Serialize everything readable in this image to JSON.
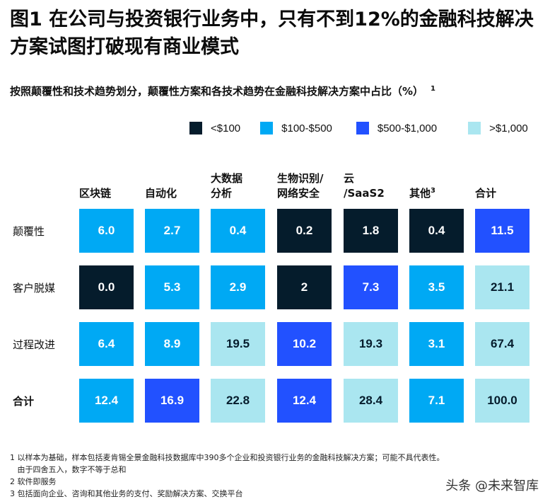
{
  "title": "图1  在公司与投资银行业务中，只有不到12%的金融科技解决方案试图打破现有商业模式",
  "subtitle": "按照颠覆性和技术趋势划分，颠覆性方案和各技术趋势在金融科技解决方案中占比（%）",
  "subtitle_sup": "1",
  "colors": {
    "lt100": "#051c2c",
    "100to500": "#00a9f4",
    "500to1000": "#2251ff",
    "gt1000": "#aae6f0"
  },
  "chart_data": {
    "type": "table",
    "legend": [
      {
        "label": "<$100",
        "color": "#051c2c"
      },
      {
        "label": "$100-$500",
        "color": "#00a9f4"
      },
      {
        "label": "$500-$1,000",
        "color": "#2251ff"
      },
      {
        "label": ">$1,000",
        "color": "#aae6f0"
      }
    ],
    "legend_position": "top-right",
    "columns": [
      {
        "label": "区块链"
      },
      {
        "label": "自动化"
      },
      {
        "label": "大数据\n分析"
      },
      {
        "label": "生物识别/\n网络安全"
      },
      {
        "label": "云\n/SaaS2"
      },
      {
        "label": "其他",
        "sup": "3"
      },
      {
        "label": "合计"
      }
    ],
    "rows": [
      {
        "label": "颠覆性",
        "values": [
          "6.0",
          "2.7",
          "0.4",
          "0.2",
          "1.8",
          "0.4",
          "11.5"
        ],
        "category": [
          1,
          1,
          1,
          0,
          0,
          0,
          2
        ]
      },
      {
        "label": "客户脱媒",
        "values": [
          "0.0",
          "5.3",
          "2.9",
          "2",
          "7.3",
          "3.5",
          "21.1"
        ],
        "category": [
          0,
          1,
          1,
          0,
          2,
          1,
          3
        ]
      },
      {
        "label": "过程改进",
        "values": [
          "6.4",
          "8.9",
          "19.5",
          "10.2",
          "19.3",
          "3.1",
          "67.4"
        ],
        "category": [
          1,
          1,
          3,
          2,
          3,
          1,
          3
        ]
      },
      {
        "label": "合计",
        "bold": true,
        "values": [
          "12.4",
          "16.9",
          "22.8",
          "12.4",
          "28.4",
          "7.1",
          "100.0"
        ],
        "category": [
          1,
          2,
          3,
          2,
          3,
          1,
          3
        ]
      }
    ]
  },
  "notes": [
    "1 以样本为基础，样本包括麦肯锡全景金融科技数据库中390多个企业和投资银行业务的金融科技解决方案；可能不具代表性。",
    "   由于四舍五入，数字不等于总和",
    "2 软件即服务",
    "3 包括面向企业、咨询和其他业务的支付、奖励解决方案、交换平台"
  ],
  "watermark": "头条 @未来智库"
}
